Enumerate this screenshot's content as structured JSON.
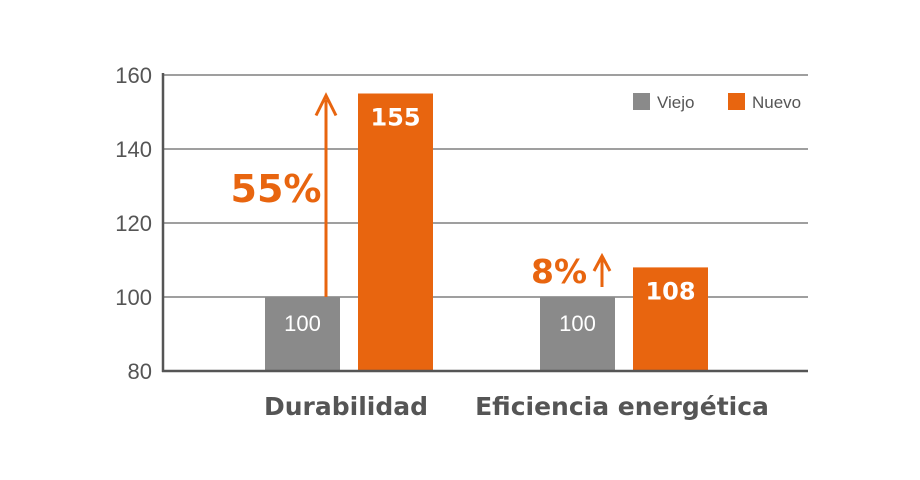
{
  "chart_data": {
    "type": "bar",
    "categories": [
      "Durabilidad",
      "Eficiencia energética"
    ],
    "series": [
      {
        "name": "Viejo",
        "values": [
          100,
          100
        ],
        "color": "#8a8a8a"
      },
      {
        "name": "Nuevo",
        "values": [
          155,
          108
        ],
        "color": "#e8650f"
      }
    ],
    "data_labels": {
      "Viejo": [
        "100",
        "100"
      ],
      "Nuevo": [
        "155",
        "108"
      ]
    },
    "annotations": [
      {
        "category": "Durabilidad",
        "text": "55%",
        "arrow": "up"
      },
      {
        "category": "Eficiencia energética",
        "text": "8%",
        "arrow": "up"
      }
    ],
    "yticks": [
      80,
      100,
      120,
      140,
      160
    ],
    "ytick_labels": [
      "80",
      "100",
      "120",
      "140",
      "160"
    ],
    "ylim": [
      80,
      160
    ],
    "grid": true,
    "legend_position": "top-right",
    "title": "",
    "xlabel": "",
    "ylabel": "",
    "colors": {
      "axis": "#555555",
      "grid": "#666666",
      "text": "#555555",
      "accent": "#e8650f"
    }
  }
}
